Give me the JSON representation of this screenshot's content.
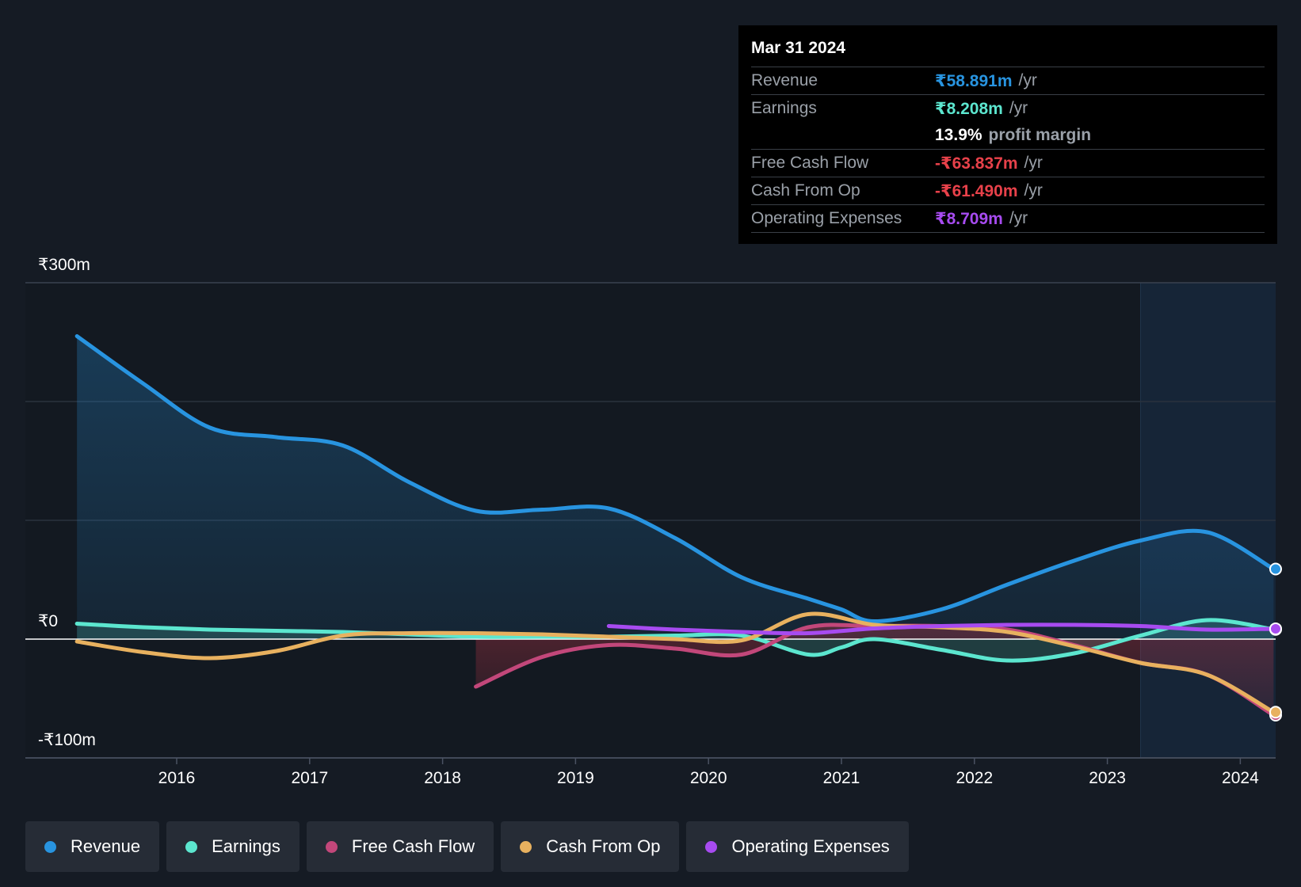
{
  "tooltip": {
    "date": "Mar 31 2024",
    "rows": [
      {
        "label": "Revenue",
        "value": "₹58.891m",
        "unit": "/yr",
        "color": "#2894e0"
      },
      {
        "label": "Earnings",
        "value": "₹8.208m",
        "unit": "/yr",
        "color": "#5ce6cf"
      },
      {
        "label": "",
        "value": "13.9%",
        "unit": "profit margin",
        "color": "#ffffff"
      },
      {
        "label": "Free Cash Flow",
        "value": "-₹63.837m",
        "unit": "/yr",
        "color": "#e8414a"
      },
      {
        "label": "Cash From Op",
        "value": "-₹61.490m",
        "unit": "/yr",
        "color": "#e8414a"
      },
      {
        "label": "Operating Expenses",
        "value": "₹8.709m",
        "unit": "/yr",
        "color": "#a74bf0"
      }
    ]
  },
  "legend": [
    {
      "label": "Revenue",
      "color": "#2894e0"
    },
    {
      "label": "Earnings",
      "color": "#5ce6cf"
    },
    {
      "label": "Free Cash Flow",
      "color": "#c2477a"
    },
    {
      "label": "Cash From Op",
      "color": "#e8b15f"
    },
    {
      "label": "Operating Expenses",
      "color": "#a74bf0"
    }
  ],
  "chart_data": {
    "type": "line",
    "x_tick_labels": [
      "2016",
      "2017",
      "2018",
      "2019",
      "2020",
      "2021",
      "2022",
      "2023",
      "2024"
    ],
    "y_tick_labels": [
      "₹300m",
      "₹0",
      "-₹100m"
    ],
    "ylim": [
      -100,
      300
    ],
    "xlim": [
      2015.0,
      2024.25
    ],
    "grid": true,
    "highlight_start": 2023.25,
    "series": [
      {
        "name": "Revenue",
        "color": "#2894e0",
        "fill": true,
        "points": [
          [
            2015.25,
            255
          ],
          [
            2015.75,
            215
          ],
          [
            2016.25,
            178
          ],
          [
            2016.75,
            170
          ],
          [
            2017.25,
            163
          ],
          [
            2017.75,
            132
          ],
          [
            2018.25,
            108
          ],
          [
            2018.75,
            109
          ],
          [
            2019.25,
            110
          ],
          [
            2019.75,
            85
          ],
          [
            2020.25,
            52
          ],
          [
            2020.75,
            34
          ],
          [
            2021.0,
            25
          ],
          [
            2021.25,
            15
          ],
          [
            2021.75,
            25
          ],
          [
            2022.25,
            46
          ],
          [
            2022.75,
            66
          ],
          [
            2023.25,
            83
          ],
          [
            2023.75,
            90
          ],
          [
            2024.25,
            59
          ]
        ]
      },
      {
        "name": "Earnings",
        "color": "#5ce6cf",
        "fill": true,
        "points": [
          [
            2015.25,
            13
          ],
          [
            2015.75,
            10
          ],
          [
            2016.25,
            8
          ],
          [
            2016.75,
            7
          ],
          [
            2017.25,
            6
          ],
          [
            2017.75,
            4
          ],
          [
            2018.25,
            2
          ],
          [
            2018.75,
            2
          ],
          [
            2019.25,
            2
          ],
          [
            2019.75,
            3
          ],
          [
            2020.25,
            3
          ],
          [
            2020.75,
            -13
          ],
          [
            2021.0,
            -7
          ],
          [
            2021.25,
            0
          ],
          [
            2021.75,
            -9
          ],
          [
            2022.25,
            -18
          ],
          [
            2022.75,
            -12
          ],
          [
            2023.25,
            3
          ],
          [
            2023.75,
            16
          ],
          [
            2024.25,
            8.2
          ]
        ]
      },
      {
        "name": "Free Cash Flow",
        "color": "#c2477a",
        "fill": true,
        "points": [
          [
            2018.25,
            -40
          ],
          [
            2018.75,
            -15
          ],
          [
            2019.25,
            -5
          ],
          [
            2019.75,
            -8
          ],
          [
            2020.25,
            -13
          ],
          [
            2020.75,
            10
          ],
          [
            2021.25,
            11
          ],
          [
            2021.75,
            11
          ],
          [
            2022.25,
            8
          ],
          [
            2022.75,
            -5
          ],
          [
            2023.25,
            -20
          ],
          [
            2023.75,
            -30
          ],
          [
            2024.25,
            -64
          ]
        ]
      },
      {
        "name": "Cash From Op",
        "color": "#e8b15f",
        "fill": false,
        "points": [
          [
            2015.25,
            -2
          ],
          [
            2015.75,
            -11
          ],
          [
            2016.25,
            -16
          ],
          [
            2016.75,
            -10
          ],
          [
            2017.25,
            3
          ],
          [
            2017.75,
            5
          ],
          [
            2018.25,
            5
          ],
          [
            2018.75,
            4
          ],
          [
            2019.25,
            2
          ],
          [
            2019.75,
            0
          ],
          [
            2020.25,
            -1
          ],
          [
            2020.75,
            21
          ],
          [
            2021.25,
            12
          ],
          [
            2021.75,
            10
          ],
          [
            2022.25,
            6
          ],
          [
            2022.75,
            -6
          ],
          [
            2023.25,
            -20
          ],
          [
            2023.75,
            -30
          ],
          [
            2024.25,
            -61.5
          ]
        ]
      },
      {
        "name": "Operating Expenses",
        "color": "#a74bf0",
        "fill": false,
        "points": [
          [
            2019.25,
            11
          ],
          [
            2019.75,
            8
          ],
          [
            2020.25,
            6
          ],
          [
            2020.75,
            5
          ],
          [
            2021.25,
            9
          ],
          [
            2021.75,
            11
          ],
          [
            2022.25,
            12
          ],
          [
            2022.75,
            12
          ],
          [
            2023.25,
            11
          ],
          [
            2023.75,
            8
          ],
          [
            2024.25,
            8.7
          ]
        ]
      }
    ]
  }
}
